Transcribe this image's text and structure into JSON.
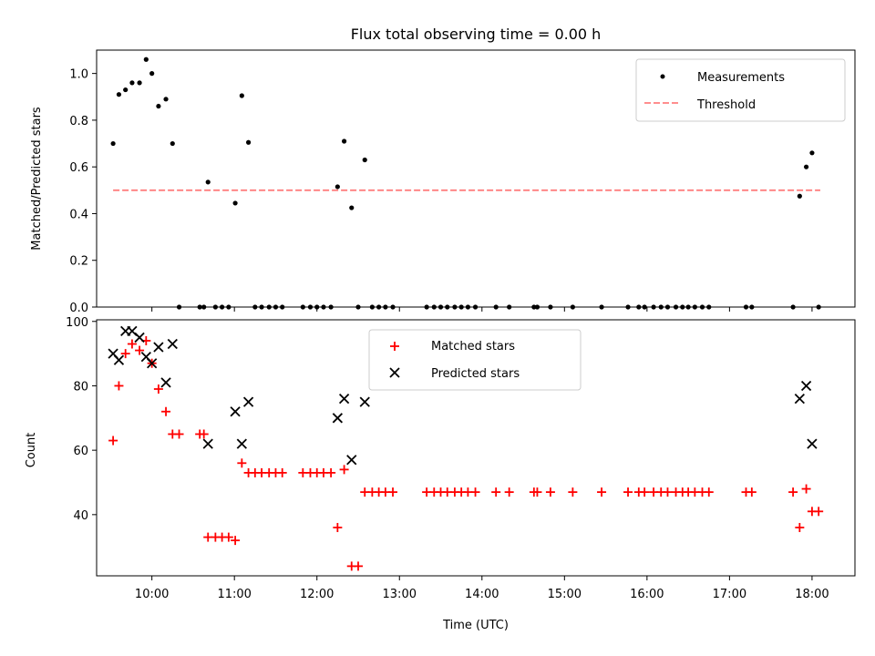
{
  "title": "Flux total observing time = 0.00 h",
  "colors": {
    "measurements": "#000000",
    "threshold": "#ff7f7f",
    "matched": "#ff0000",
    "predicted": "#000000"
  },
  "xaxis": {
    "label": "Time (UTC)",
    "ticks": [
      "10:00",
      "11:00",
      "12:00",
      "13:00",
      "14:00",
      "15:00",
      "16:00",
      "17:00",
      "18:00"
    ],
    "tick_values_h": [
      10,
      11,
      12,
      13,
      14,
      15,
      16,
      17,
      18
    ],
    "range_h": [
      9.33,
      18.52
    ]
  },
  "chart_data": [
    {
      "type": "scatter",
      "ylabel": "Matched/Predicted stars",
      "ylim": [
        0,
        1.1
      ],
      "yticks": [
        "0.0",
        "0.2",
        "0.4",
        "0.6",
        "0.8",
        "1.0"
      ],
      "ytick_values": [
        0,
        0.2,
        0.4,
        0.6,
        0.8,
        1.0
      ],
      "legend": {
        "placement": "top-right",
        "entries": [
          "Measurements",
          "Threshold"
        ]
      },
      "series": [
        {
          "name": "Measurements",
          "marker": "dot",
          "points": [
            [
              9.53,
              0.7
            ],
            [
              9.6,
              0.91
            ],
            [
              9.68,
              0.93
            ],
            [
              9.76,
              0.96
            ],
            [
              9.85,
              0.96
            ],
            [
              9.93,
              1.06
            ],
            [
              10.0,
              1.0
            ],
            [
              10.08,
              0.86
            ],
            [
              10.17,
              0.89
            ],
            [
              10.25,
              0.7
            ],
            [
              10.33,
              0.0
            ],
            [
              10.58,
              0.0
            ],
            [
              10.63,
              0.0
            ],
            [
              10.68,
              0.535
            ],
            [
              10.77,
              0.0
            ],
            [
              10.85,
              0.0
            ],
            [
              10.93,
              0.0
            ],
            [
              11.01,
              0.445
            ],
            [
              11.09,
              0.905
            ],
            [
              11.17,
              0.705
            ],
            [
              11.25,
              0.0
            ],
            [
              11.33,
              0.0
            ],
            [
              11.42,
              0.0
            ],
            [
              11.5,
              0.0
            ],
            [
              11.58,
              0.0
            ],
            [
              11.83,
              0.0
            ],
            [
              11.92,
              0.0
            ],
            [
              12.0,
              0.0
            ],
            [
              12.08,
              0.0
            ],
            [
              12.17,
              0.0
            ],
            [
              12.25,
              0.515
            ],
            [
              12.33,
              0.71
            ],
            [
              12.42,
              0.425
            ],
            [
              12.5,
              0.0
            ],
            [
              12.58,
              0.63
            ],
            [
              12.67,
              0.0
            ],
            [
              12.75,
              0.0
            ],
            [
              12.83,
              0.0
            ],
            [
              12.92,
              0.0
            ],
            [
              13.33,
              0.0
            ],
            [
              13.42,
              0.0
            ],
            [
              13.5,
              0.0
            ],
            [
              13.58,
              0.0
            ],
            [
              13.67,
              0.0
            ],
            [
              13.75,
              0.0
            ],
            [
              13.83,
              0.0
            ],
            [
              13.92,
              0.0
            ],
            [
              14.17,
              0.0
            ],
            [
              14.33,
              0.0
            ],
            [
              14.63,
              0.0
            ],
            [
              14.67,
              0.0
            ],
            [
              14.83,
              0.0
            ],
            [
              15.1,
              0.0
            ],
            [
              15.45,
              0.0
            ],
            [
              15.77,
              0.0
            ],
            [
              15.9,
              0.0
            ],
            [
              15.97,
              0.0
            ],
            [
              16.08,
              0.0
            ],
            [
              16.17,
              0.0
            ],
            [
              16.25,
              0.0
            ],
            [
              16.35,
              0.0
            ],
            [
              16.43,
              0.0
            ],
            [
              16.5,
              0.0
            ],
            [
              16.58,
              0.0
            ],
            [
              16.67,
              0.0
            ],
            [
              16.75,
              0.0
            ],
            [
              17.2,
              0.0
            ],
            [
              17.27,
              0.0
            ],
            [
              17.77,
              0.0
            ],
            [
              17.85,
              0.475
            ],
            [
              17.93,
              0.6
            ],
            [
              18.0,
              0.66
            ],
            [
              18.08,
              0.0
            ]
          ]
        },
        {
          "name": "Threshold",
          "style": "dashed",
          "x": [
            9.53,
            18.1
          ],
          "y": [
            0.5,
            0.5
          ]
        }
      ]
    },
    {
      "type": "scatter",
      "ylabel": "Count",
      "ylim": [
        21,
        100.5
      ],
      "yticks": [
        "40",
        "60",
        "80",
        "100"
      ],
      "ytick_values": [
        40,
        60,
        80,
        100
      ],
      "legend": {
        "placement": "top-center",
        "entries": [
          "Matched stars",
          "Predicted stars"
        ]
      },
      "series": [
        {
          "name": "Matched stars",
          "marker": "plus",
          "points": [
            [
              9.53,
              63
            ],
            [
              9.6,
              80
            ],
            [
              9.68,
              90
            ],
            [
              9.76,
              93
            ],
            [
              9.85,
              91
            ],
            [
              9.93,
              94
            ],
            [
              10.0,
              87
            ],
            [
              10.08,
              79
            ],
            [
              10.17,
              72
            ],
            [
              10.25,
              65
            ],
            [
              10.33,
              65
            ],
            [
              10.58,
              65
            ],
            [
              10.63,
              65
            ],
            [
              10.68,
              33
            ],
            [
              10.77,
              33
            ],
            [
              10.85,
              33
            ],
            [
              10.93,
              33
            ],
            [
              11.01,
              32
            ],
            [
              11.09,
              56
            ],
            [
              11.17,
              53
            ],
            [
              11.25,
              53
            ],
            [
              11.33,
              53
            ],
            [
              11.42,
              53
            ],
            [
              11.5,
              53
            ],
            [
              11.58,
              53
            ],
            [
              11.83,
              53
            ],
            [
              11.92,
              53
            ],
            [
              12.0,
              53
            ],
            [
              12.08,
              53
            ],
            [
              12.17,
              53
            ],
            [
              12.25,
              36
            ],
            [
              12.33,
              54
            ],
            [
              12.42,
              24
            ],
            [
              12.5,
              24
            ],
            [
              12.58,
              47
            ],
            [
              12.67,
              47
            ],
            [
              12.75,
              47
            ],
            [
              12.83,
              47
            ],
            [
              12.92,
              47
            ],
            [
              13.33,
              47
            ],
            [
              13.42,
              47
            ],
            [
              13.5,
              47
            ],
            [
              13.58,
              47
            ],
            [
              13.67,
              47
            ],
            [
              13.75,
              47
            ],
            [
              13.83,
              47
            ],
            [
              13.92,
              47
            ],
            [
              14.17,
              47
            ],
            [
              14.33,
              47
            ],
            [
              14.63,
              47
            ],
            [
              14.67,
              47
            ],
            [
              14.83,
              47
            ],
            [
              15.1,
              47
            ],
            [
              15.45,
              47
            ],
            [
              15.77,
              47
            ],
            [
              15.9,
              47
            ],
            [
              15.97,
              47
            ],
            [
              16.08,
              47
            ],
            [
              16.17,
              47
            ],
            [
              16.25,
              47
            ],
            [
              16.35,
              47
            ],
            [
              16.43,
              47
            ],
            [
              16.5,
              47
            ],
            [
              16.58,
              47
            ],
            [
              16.67,
              47
            ],
            [
              16.75,
              47
            ],
            [
              17.2,
              47
            ],
            [
              17.27,
              47
            ],
            [
              17.77,
              47
            ],
            [
              17.85,
              36
            ],
            [
              17.93,
              48
            ],
            [
              18.0,
              41
            ],
            [
              18.08,
              41
            ]
          ]
        },
        {
          "name": "Predicted stars",
          "marker": "x",
          "points": [
            [
              9.53,
              90
            ],
            [
              9.6,
              88
            ],
            [
              9.68,
              97
            ],
            [
              9.76,
              97
            ],
            [
              9.85,
              95
            ],
            [
              9.93,
              89
            ],
            [
              10.0,
              87
            ],
            [
              10.08,
              92
            ],
            [
              10.17,
              81
            ],
            [
              10.25,
              93
            ],
            [
              10.68,
              62
            ],
            [
              11.01,
              72
            ],
            [
              11.09,
              62
            ],
            [
              11.17,
              75
            ],
            [
              12.25,
              70
            ],
            [
              12.33,
              76
            ],
            [
              12.42,
              57
            ],
            [
              12.58,
              75
            ],
            [
              17.85,
              76
            ],
            [
              17.93,
              80
            ],
            [
              18.0,
              62
            ]
          ]
        }
      ]
    }
  ]
}
